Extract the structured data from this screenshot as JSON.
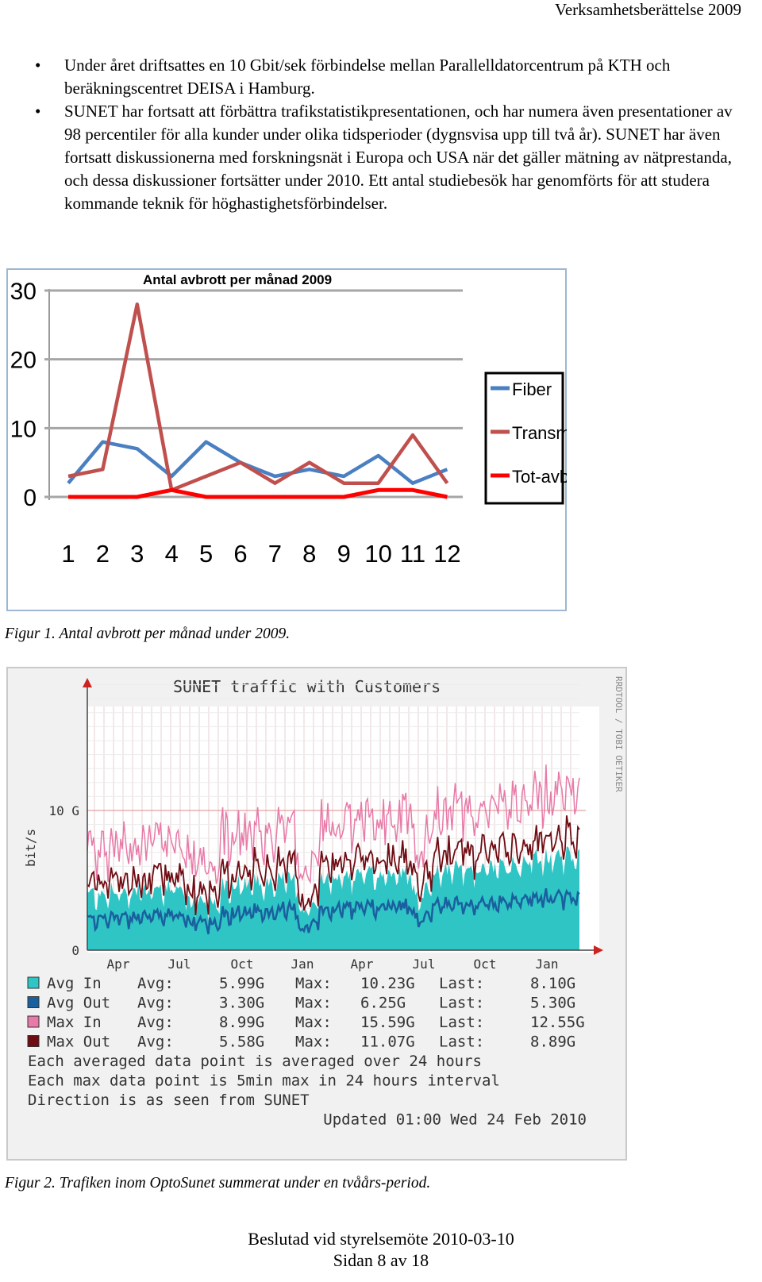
{
  "header": {
    "title": "Verksamhetsberättelse 2009"
  },
  "bullets": [
    "Under året driftsattes en 10 Gbit/sek förbindelse mellan Parallelldatorcentrum på KTH och beräkningscentret DEISA i Hamburg.",
    "SUNET har fortsatt att förbättra trafikstatistikpresentationen, och har numera även presentationer av 98 percentiler för alla kunder under olika tidsperioder (dygnsvisa upp till två år). SUNET har även fortsatt diskussionerna med forskningsnät i Europa och USA när det gäller mätning av nätprestanda, och dessa diskussioner fortsätter under 2010. Ett antal studiebesök har genomförts för att studera kommande teknik för höghastighetsförbindelser."
  ],
  "bullet_symbol": "•",
  "figure1": {
    "caption": "Figur 1. Antal avbrott per månad under 2009."
  },
  "figure2": {
    "caption": "Figur 2. Trafiken inom OptoSunet summerat under en tvåårs-period.",
    "title": "SUNET traffic with Customers",
    "ylabel": "bit/s",
    "side_text": "RRDTOOL / TOBI OETIKER",
    "y_ticks": [
      "10 G",
      "0"
    ],
    "x_ticks": [
      "Apr",
      "Jul",
      "Oct",
      "Jan",
      "Apr",
      "Jul",
      "Oct",
      "Jan"
    ],
    "legend": [
      {
        "label": "Avg In",
        "avg": "5.99G",
        "max": "10.23G",
        "last": "8.10G",
        "color": "#2fc5c5"
      },
      {
        "label": "Avg Out",
        "avg": "3.30G",
        "max": "6.25G",
        "last": "5.30G",
        "color": "#1a5f9e"
      },
      {
        "label": "Max In",
        "avg": "8.99G",
        "max": "15.59G",
        "last": "12.55G",
        "color": "#e87aa8"
      },
      {
        "label": "Max Out",
        "avg": "5.58G",
        "max": "11.07G",
        "last": "8.89G",
        "color": "#6e0c12"
      }
    ],
    "legend_words": {
      "avg": "Avg:",
      "max": "Max:",
      "last": "Last:"
    },
    "notes": [
      "Each averaged data point is averaged over 24 hours",
      "Each max data point is 5min max in 24 hours interval",
      "Direction is as seen from SUNET"
    ],
    "updated": "Updated 01:00 Wed 24 Feb 2010"
  },
  "chart_data": [
    {
      "type": "line",
      "title": "Antal avbrott per månad 2009",
      "categories": [
        "1",
        "2",
        "3",
        "4",
        "5",
        "6",
        "7",
        "8",
        "9",
        "10",
        "11",
        "12"
      ],
      "y_ticks": [
        "0",
        "10",
        "20",
        "30"
      ],
      "ylim": [
        0,
        30
      ],
      "grid": true,
      "legend_position": "right",
      "series": [
        {
          "name": "Fiber",
          "color": "#4a7fc1",
          "values": [
            2,
            8,
            7,
            3,
            8,
            5,
            3,
            4,
            3,
            6,
            2,
            4
          ]
        },
        {
          "name": "Transm",
          "color": "#c0504d",
          "values": [
            3,
            4,
            28,
            1,
            3,
            5,
            2,
            5,
            2,
            2,
            9,
            2
          ]
        },
        {
          "name": "Tot-avbr",
          "color": "#ff0000",
          "values": [
            0,
            0,
            0,
            1,
            0,
            0,
            0,
            0,
            0,
            1,
            1,
            0
          ]
        }
      ]
    }
  ],
  "footer": {
    "line1": "Beslutad vid styrelsemöte 2010-03-10",
    "line2": "Sidan 8 av 18"
  }
}
